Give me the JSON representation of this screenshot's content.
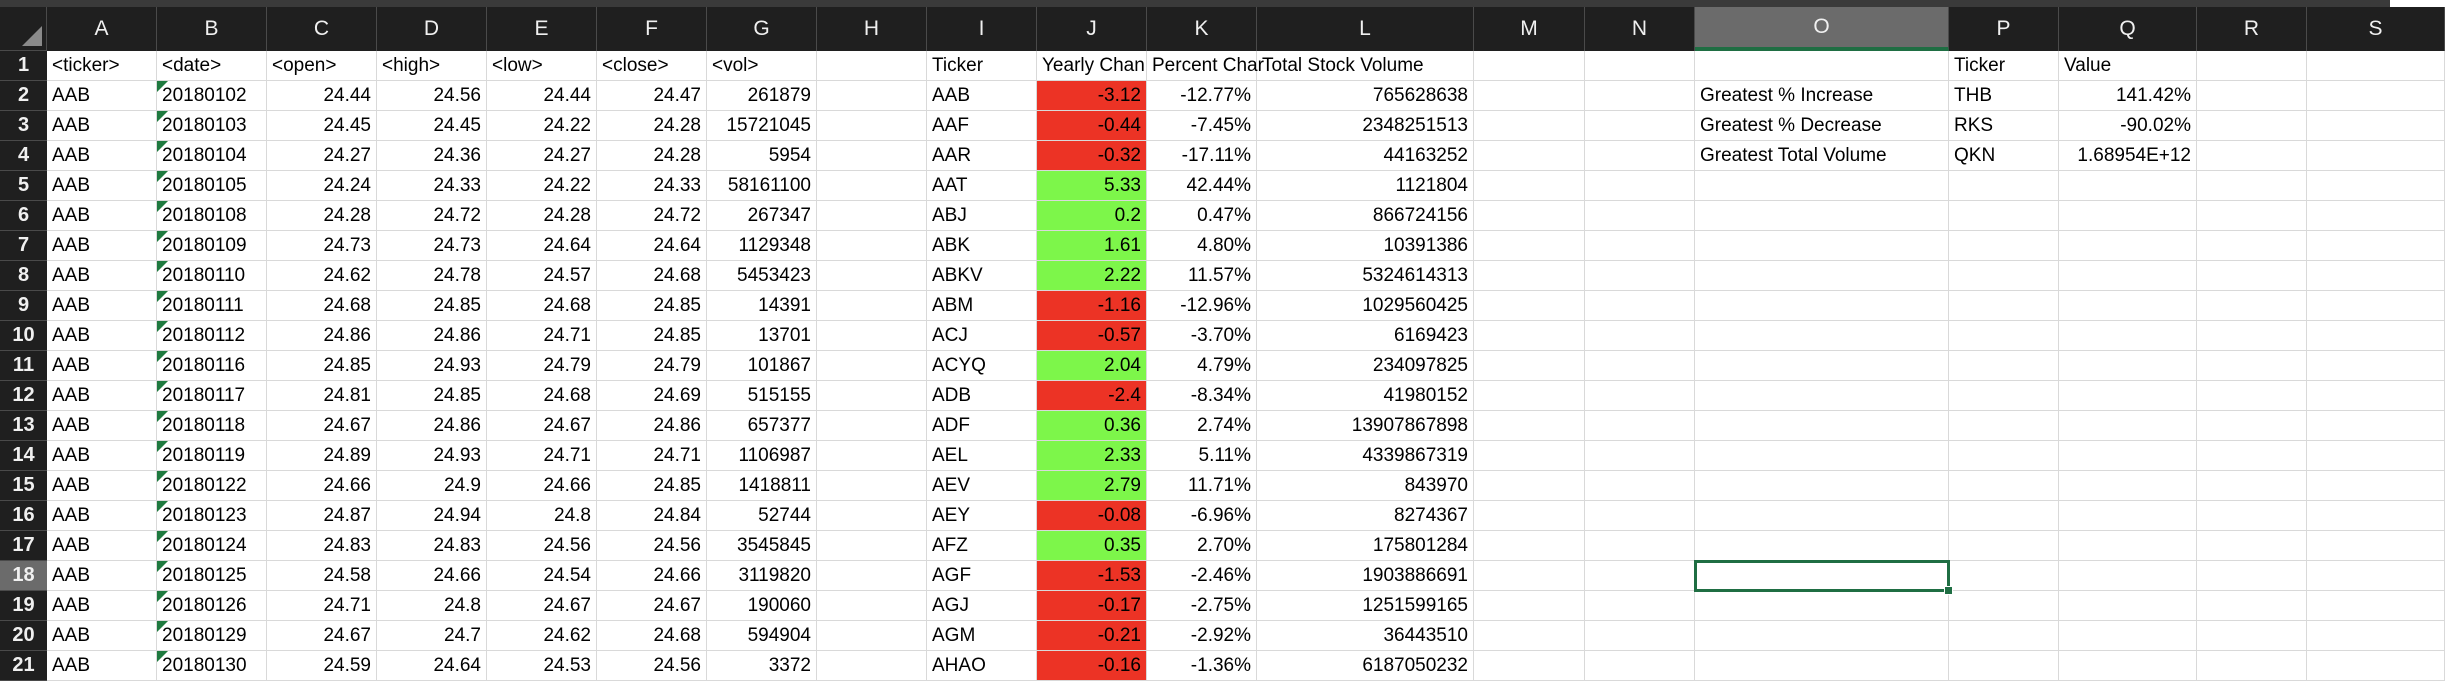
{
  "columns": [
    "A",
    "B",
    "C",
    "D",
    "E",
    "F",
    "G",
    "H",
    "I",
    "J",
    "K",
    "L",
    "M",
    "N",
    "O",
    "P",
    "Q",
    "R",
    "S"
  ],
  "selected": {
    "col": "O",
    "row": 18
  },
  "rows": [
    {
      "n": 1,
      "c": {
        "A": "<ticker>",
        "B": "<date>",
        "C": "<open>",
        "D": "<high>",
        "E": "<low>",
        "F": "<close>",
        "G": "<vol>",
        "I": "Ticker",
        "J": "Yearly Chan",
        "K": "Percent Char",
        "L": "Total Stock Volume",
        "P": "Ticker",
        "Q": "Value"
      }
    },
    {
      "n": 2,
      "c": {
        "A": "AAB",
        "B": "20180102",
        "C": "24.44",
        "D": "24.56",
        "E": "24.44",
        "F": "24.47",
        "G": "261879",
        "I": "AAB",
        "J": "-3.12",
        "K": "-12.77%",
        "L": "765628638",
        "O": "Greatest % Increase",
        "P": "THB",
        "Q": "141.42%"
      }
    },
    {
      "n": 3,
      "c": {
        "A": "AAB",
        "B": "20180103",
        "C": "24.45",
        "D": "24.45",
        "E": "24.22",
        "F": "24.28",
        "G": "15721045",
        "I": "AAF",
        "J": "-0.44",
        "K": "-7.45%",
        "L": "2348251513",
        "O": "Greatest % Decrease",
        "P": "RKS",
        "Q": "-90.02%"
      }
    },
    {
      "n": 4,
      "c": {
        "A": "AAB",
        "B": "20180104",
        "C": "24.27",
        "D": "24.36",
        "E": "24.27",
        "F": "24.28",
        "G": "5954",
        "I": "AAR",
        "J": "-0.32",
        "K": "-17.11%",
        "L": "44163252",
        "O": "Greatest Total Volume",
        "P": "QKN",
        "Q": "1.68954E+12"
      }
    },
    {
      "n": 5,
      "c": {
        "A": "AAB",
        "B": "20180105",
        "C": "24.24",
        "D": "24.33",
        "E": "24.22",
        "F": "24.33",
        "G": "58161100",
        "I": "AAT",
        "J": "5.33",
        "K": "42.44%",
        "L": "1121804"
      }
    },
    {
      "n": 6,
      "c": {
        "A": "AAB",
        "B": "20180108",
        "C": "24.28",
        "D": "24.72",
        "E": "24.28",
        "F": "24.72",
        "G": "267347",
        "I": "ABJ",
        "J": "0.2",
        "K": "0.47%",
        "L": "866724156"
      }
    },
    {
      "n": 7,
      "c": {
        "A": "AAB",
        "B": "20180109",
        "C": "24.73",
        "D": "24.73",
        "E": "24.64",
        "F": "24.64",
        "G": "1129348",
        "I": "ABK",
        "J": "1.61",
        "K": "4.80%",
        "L": "10391386"
      }
    },
    {
      "n": 8,
      "c": {
        "A": "AAB",
        "B": "20180110",
        "C": "24.62",
        "D": "24.78",
        "E": "24.57",
        "F": "24.68",
        "G": "5453423",
        "I": "ABKV",
        "J": "2.22",
        "K": "11.57%",
        "L": "5324614313"
      }
    },
    {
      "n": 9,
      "c": {
        "A": "AAB",
        "B": "20180111",
        "C": "24.68",
        "D": "24.85",
        "E": "24.68",
        "F": "24.85",
        "G": "14391",
        "I": "ABM",
        "J": "-1.16",
        "K": "-12.96%",
        "L": "1029560425"
      }
    },
    {
      "n": 10,
      "c": {
        "A": "AAB",
        "B": "20180112",
        "C": "24.86",
        "D": "24.86",
        "E": "24.71",
        "F": "24.85",
        "G": "13701",
        "I": "ACJ",
        "J": "-0.57",
        "K": "-3.70%",
        "L": "6169423"
      }
    },
    {
      "n": 11,
      "c": {
        "A": "AAB",
        "B": "20180116",
        "C": "24.85",
        "D": "24.93",
        "E": "24.79",
        "F": "24.79",
        "G": "101867",
        "I": "ACYQ",
        "J": "2.04",
        "K": "4.79%",
        "L": "234097825"
      }
    },
    {
      "n": 12,
      "c": {
        "A": "AAB",
        "B": "20180117",
        "C": "24.81",
        "D": "24.85",
        "E": "24.68",
        "F": "24.69",
        "G": "515155",
        "I": "ADB",
        "J": "-2.4",
        "K": "-8.34%",
        "L": "41980152"
      }
    },
    {
      "n": 13,
      "c": {
        "A": "AAB",
        "B": "20180118",
        "C": "24.67",
        "D": "24.86",
        "E": "24.67",
        "F": "24.86",
        "G": "657377",
        "I": "ADF",
        "J": "0.36",
        "K": "2.74%",
        "L": "13907867898"
      }
    },
    {
      "n": 14,
      "c": {
        "A": "AAB",
        "B": "20180119",
        "C": "24.89",
        "D": "24.93",
        "E": "24.71",
        "F": "24.71",
        "G": "1106987",
        "I": "AEL",
        "J": "2.33",
        "K": "5.11%",
        "L": "4339867319"
      }
    },
    {
      "n": 15,
      "c": {
        "A": "AAB",
        "B": "20180122",
        "C": "24.66",
        "D": "24.9",
        "E": "24.66",
        "F": "24.85",
        "G": "1418811",
        "I": "AEV",
        "J": "2.79",
        "K": "11.71%",
        "L": "843970"
      }
    },
    {
      "n": 16,
      "c": {
        "A": "AAB",
        "B": "20180123",
        "C": "24.87",
        "D": "24.94",
        "E": "24.8",
        "F": "24.84",
        "G": "52744",
        "I": "AEY",
        "J": "-0.08",
        "K": "-6.96%",
        "L": "8274367"
      }
    },
    {
      "n": 17,
      "c": {
        "A": "AAB",
        "B": "20180124",
        "C": "24.83",
        "D": "24.83",
        "E": "24.56",
        "F": "24.56",
        "G": "3545845",
        "I": "AFZ",
        "J": "0.35",
        "K": "2.70%",
        "L": "175801284"
      }
    },
    {
      "n": 18,
      "c": {
        "A": "AAB",
        "B": "20180125",
        "C": "24.58",
        "D": "24.66",
        "E": "24.54",
        "F": "24.66",
        "G": "3119820",
        "I": "AGF",
        "J": "-1.53",
        "K": "-2.46%",
        "L": "1903886691"
      }
    },
    {
      "n": 19,
      "c": {
        "A": "AAB",
        "B": "20180126",
        "C": "24.71",
        "D": "24.8",
        "E": "24.67",
        "F": "24.67",
        "G": "190060",
        "I": "AGJ",
        "J": "-0.17",
        "K": "-2.75%",
        "L": "1251599165"
      }
    },
    {
      "n": 20,
      "c": {
        "A": "AAB",
        "B": "20180129",
        "C": "24.67",
        "D": "24.7",
        "E": "24.62",
        "F": "24.68",
        "G": "594904",
        "I": "AGM",
        "J": "-0.21",
        "K": "-2.92%",
        "L": "36443510"
      }
    },
    {
      "n": 21,
      "c": {
        "A": "AAB",
        "B": "20180130",
        "C": "24.59",
        "D": "24.64",
        "E": "24.53",
        "F": "24.56",
        "G": "3372",
        "I": "AHAO",
        "J": "-0.16",
        "K": "-1.36%",
        "L": "6187050232"
      }
    }
  ],
  "colors": {
    "negative": "#ec3325",
    "positive": "#7df64a",
    "selection": "#1f6e43"
  }
}
